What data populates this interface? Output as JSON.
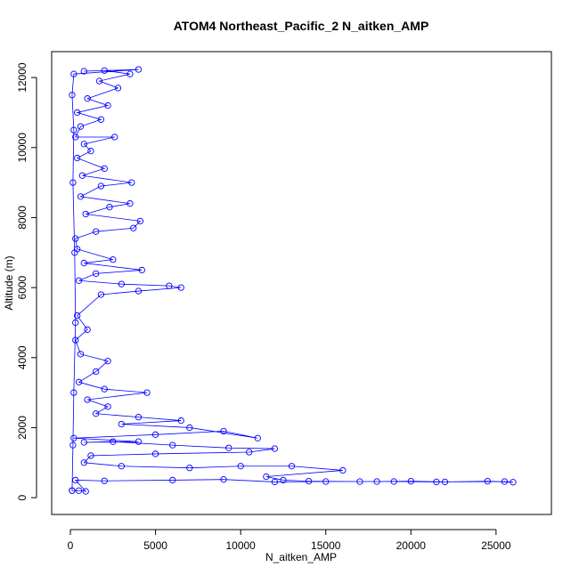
{
  "chart_data": {
    "type": "line",
    "markers": true,
    "title": "ATOM4 Northeast_Pacific_2 N_aitken_AMP",
    "x_label": "N_aitken_AMP",
    "y_label": "Altitude (m)",
    "xlim": [
      -1100,
      28250
    ],
    "ylim": [
      -480,
      12740
    ],
    "xticks": [
      0,
      5000,
      10000,
      15000,
      20000,
      25000
    ],
    "yticks": [
      0,
      2000,
      4000,
      6000,
      8000,
      10000,
      12000
    ],
    "series": [
      {
        "color": "#0000ff",
        "x": [
          100,
          500,
          900,
          300,
          2000,
          6000,
          9000,
          12000,
          15000,
          18000,
          20000,
          22000,
          24500,
          26000,
          25500,
          21500,
          19000,
          17000,
          14000,
          12500,
          11500,
          16000,
          13000,
          10000,
          7000,
          3000,
          800,
          1200,
          5000,
          10500,
          12000,
          9300,
          6000,
          2500,
          800,
          4000,
          200,
          5000,
          9000,
          11000,
          7000,
          3000,
          6500,
          4000,
          1500,
          2200,
          1000,
          4500,
          2000,
          500,
          1500,
          2200,
          600,
          300,
          1000,
          400,
          1800,
          4000,
          6500,
          5800,
          3000,
          500,
          1500,
          4200,
          800,
          2500,
          400,
          300,
          1500,
          3700,
          4100,
          900,
          2300,
          3500,
          600,
          1800,
          3600,
          700,
          2000,
          400,
          1200,
          800,
          2600,
          300,
          600,
          1800,
          400,
          2200,
          1000,
          2800,
          1700,
          3500,
          2000,
          800,
          4000,
          200,
          100,
          200,
          150,
          250,
          300,
          200,
          150,
          100
        ],
        "values": [
          200,
          200,
          180,
          500,
          480,
          500,
          520,
          450,
          460,
          460,
          470,
          450,
          470,
          440,
          460,
          450,
          460,
          460,
          470,
          500,
          600,
          780,
          900,
          900,
          850,
          900,
          1000,
          1200,
          1250,
          1300,
          1400,
          1420,
          1500,
          1600,
          1580,
          1600,
          1700,
          1800,
          1900,
          1700,
          2000,
          2100,
          2200,
          2300,
          2400,
          2600,
          2800,
          3000,
          3100,
          3300,
          3600,
          3900,
          4100,
          4500,
          4800,
          5200,
          5800,
          5900,
          6000,
          6050,
          6100,
          6200,
          6400,
          6500,
          6700,
          6800,
          7100,
          7400,
          7600,
          7700,
          7900,
          8100,
          8300,
          8400,
          8600,
          8900,
          9000,
          9200,
          9400,
          9700,
          9900,
          10100,
          10300,
          10300,
          10600,
          10800,
          11000,
          11200,
          11400,
          11700,
          11900,
          12100,
          12200,
          12180,
          12230,
          12100,
          11500,
          10500,
          9000,
          7000,
          5000,
          3000,
          1500,
          200
        ]
      }
    ]
  }
}
